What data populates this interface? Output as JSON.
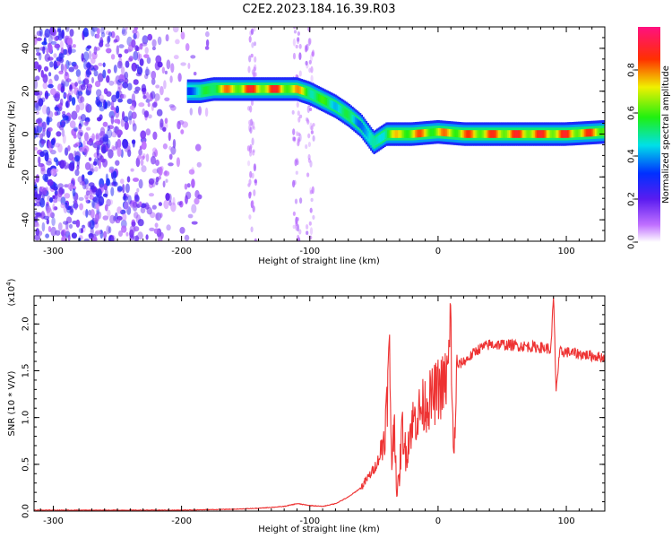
{
  "title": "C2E2.2023.184.16.39.R03",
  "chart_data": [
    {
      "type": "heatmap",
      "xlabel": "Height of straight line (km)",
      "ylabel": "Frequency (Hz)",
      "xlim": [
        -315,
        130
      ],
      "ylim": [
        -50,
        50
      ],
      "xticks": [
        -300,
        -200,
        -100,
        0,
        100
      ],
      "yticks": [
        -40,
        -20,
        0,
        20,
        40
      ],
      "colorbar": {
        "label": "Normalized spectral amplitude",
        "range": [
          0,
          1
        ],
        "ticks": [
          0.0,
          0.2,
          0.4,
          0.6,
          0.8
        ]
      },
      "ridge": {
        "x": [
          -195,
          -185,
          -175,
          -150,
          -125,
          -110,
          -100,
          -90,
          -80,
          -70,
          -60,
          -55,
          -50,
          -45,
          -40,
          -20,
          0,
          20,
          60,
          100,
          130
        ],
        "freq": [
          20,
          20,
          21,
          21,
          21,
          21,
          19,
          16,
          13,
          9,
          4,
          0,
          -4,
          -2,
          0,
          0,
          1,
          0,
          0,
          0,
          1
        ],
        "amplitude": [
          0.45,
          0.5,
          0.75,
          0.9,
          0.9,
          0.8,
          0.7,
          0.6,
          0.6,
          0.55,
          0.5,
          0.45,
          0.5,
          0.6,
          0.7,
          0.85,
          0.8,
          0.85,
          0.9,
          0.9,
          0.85
        ]
      },
      "noise_region_x": [
        -315,
        -175
      ],
      "noise_streaks_x": [
        -145,
        -110,
        -100
      ]
    },
    {
      "type": "line",
      "xlabel": "Height of straight line (km)",
      "ylabel": "SNR (10 * V/V)",
      "y_multiplier": "(x10",
      "y_multiplier_exp": "4",
      "y_multiplier_close": ")",
      "xlim": [
        -315,
        130
      ],
      "ylim": [
        0,
        2.3
      ],
      "xticks": [
        -300,
        -200,
        -100,
        0,
        100
      ],
      "yticks": [
        0.0,
        0.5,
        1.0,
        1.5,
        2.0
      ],
      "color": "#ee3333",
      "x": [
        -315,
        -200,
        -160,
        -140,
        -120,
        -110,
        -100,
        -90,
        -80,
        -70,
        -60,
        -55,
        -50,
        -45,
        -42,
        -40,
        -38,
        -36,
        -34,
        -32,
        -30,
        -28,
        -25,
        -22,
        -20,
        -15,
        -10,
        -5,
        0,
        5,
        8,
        10,
        12,
        15,
        20,
        25,
        30,
        40,
        50,
        60,
        70,
        80,
        85,
        88,
        90,
        92,
        95,
        100,
        110,
        120,
        130
      ],
      "y": [
        0.01,
        0.01,
        0.02,
        0.03,
        0.05,
        0.08,
        0.06,
        0.05,
        0.08,
        0.15,
        0.25,
        0.35,
        0.45,
        0.6,
        0.8,
        1.1,
        1.7,
        0.5,
        1.0,
        0.15,
        0.4,
        0.9,
        0.6,
        0.85,
        0.95,
        1.05,
        1.15,
        1.2,
        1.3,
        1.35,
        1.5,
        2.05,
        0.5,
        1.55,
        1.6,
        1.65,
        1.72,
        1.78,
        1.78,
        1.77,
        1.76,
        1.75,
        1.74,
        1.72,
        2.3,
        1.3,
        1.7,
        1.7,
        1.68,
        1.66,
        1.64
      ]
    }
  ]
}
